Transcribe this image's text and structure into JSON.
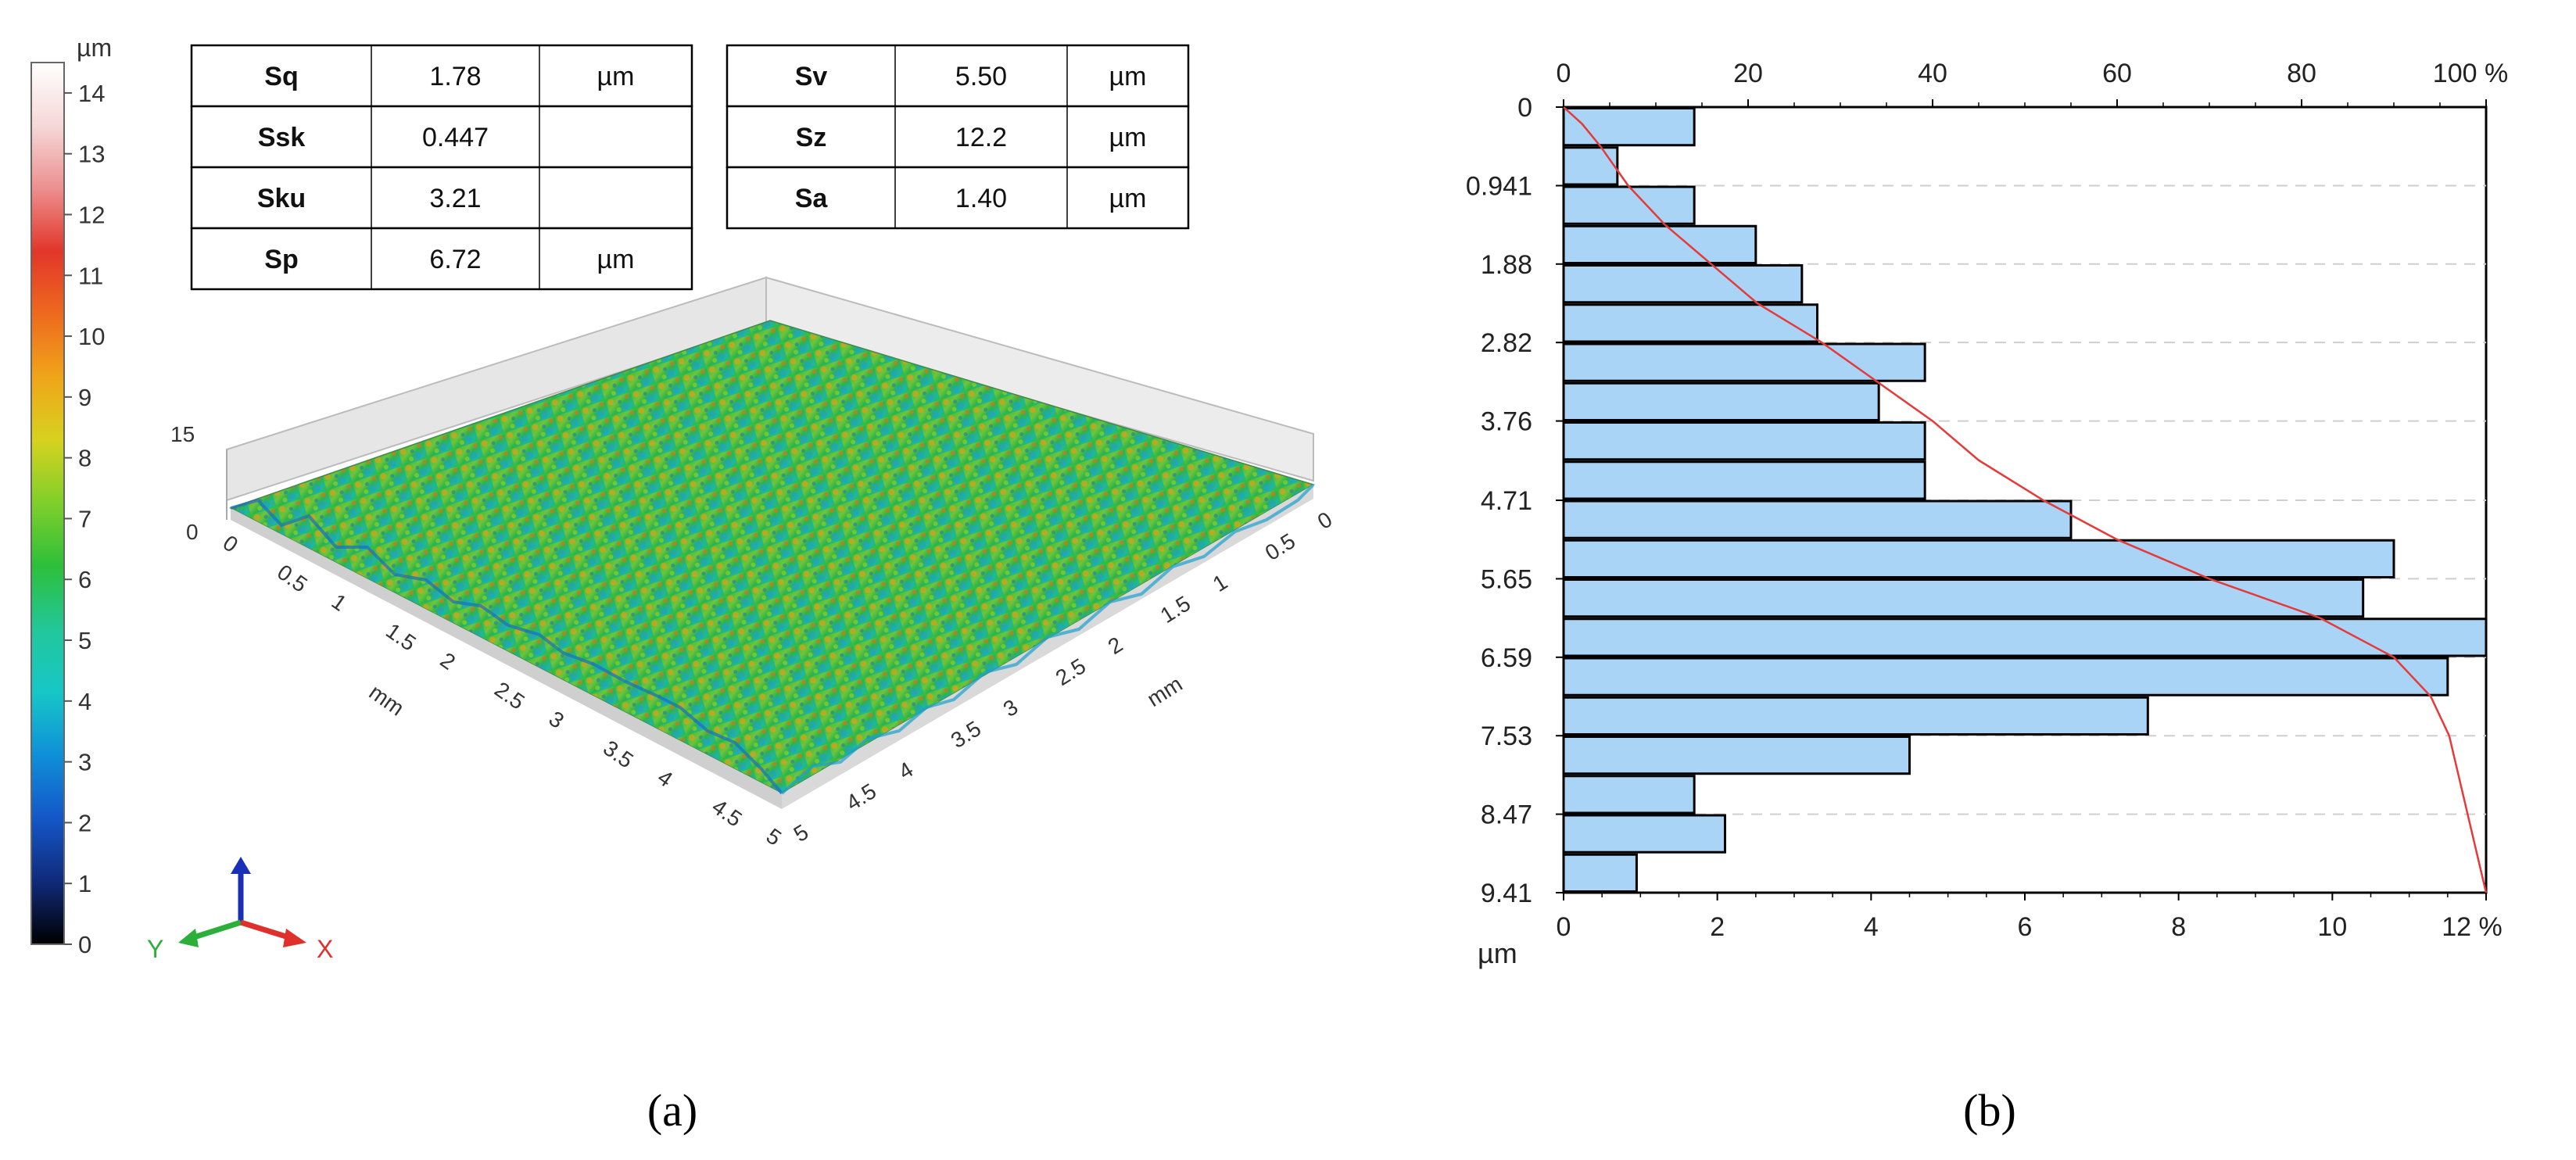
{
  "panel_a": {
    "caption": "(a)",
    "colorbar": {
      "unit": "µm",
      "min": 0,
      "max": 14.5,
      "tick_labels": [
        "0",
        "1",
        "2",
        "3",
        "4",
        "5",
        "6",
        "7",
        "8",
        "9",
        "10",
        "11",
        "12",
        "13",
        "14"
      ],
      "stops": [
        "#000000",
        "#102a7a",
        "#1457c8",
        "#0f8fd8",
        "#16c7c7",
        "#22c79a",
        "#2dbf3a",
        "#7fcf2a",
        "#d6d21e",
        "#f0a51a",
        "#ee6a1e",
        "#e2362a",
        "#ec8f8f",
        "#f6d8d8",
        "#ffffff"
      ]
    },
    "table_left": [
      {
        "name": "Sq",
        "value": "1.78",
        "unit": "µm"
      },
      {
        "name": "Ssk",
        "value": "0.447",
        "unit": ""
      },
      {
        "name": "Sku",
        "value": "3.21",
        "unit": ""
      },
      {
        "name": "Sp",
        "value": "6.72",
        "unit": "µm"
      }
    ],
    "table_right": [
      {
        "name": "Sv",
        "value": "5.50",
        "unit": "µm"
      },
      {
        "name": "Sz",
        "value": "12.2",
        "unit": "µm"
      },
      {
        "name": "Sa",
        "value": "1.40",
        "unit": "µm"
      }
    ],
    "surface": {
      "z_labels": [
        "15",
        "0"
      ],
      "x_ticks": [
        "0",
        "0.5",
        "1",
        "1.5",
        "2",
        "2.5",
        "3",
        "3.5",
        "4",
        "4.5",
        "5"
      ],
      "y_ticks": [
        "0",
        "0.5",
        "1",
        "1.5",
        "2",
        "2.5",
        "3",
        "3.5",
        "4",
        "4.5",
        "5"
      ],
      "x_unit": "mm",
      "y_unit": "mm"
    },
    "axes_gizmo": {
      "y": "Y",
      "x": "X"
    }
  },
  "panel_b": {
    "caption": "(b)",
    "chart_data": {
      "type": "bar",
      "orientation": "horizontal",
      "y_unit": "µm",
      "y_tick_labels": [
        "0",
        "0.941",
        "1.88",
        "2.82",
        "3.76",
        "4.71",
        "5.65",
        "6.59",
        "7.53",
        "8.47",
        "9.41"
      ],
      "ylim": [
        0,
        9.41
      ],
      "bin_width": 0.4705,
      "bins_start": [
        0.0,
        0.4705,
        0.941,
        1.4115,
        1.882,
        2.3525,
        2.823,
        3.2935,
        3.764,
        4.2345,
        4.705,
        5.1755,
        5.646,
        6.1165,
        6.587,
        7.0575,
        7.528,
        7.9985,
        8.469,
        8.9395
      ],
      "values": [
        1.7,
        0.7,
        1.7,
        2.5,
        3.1,
        3.3,
        4.7,
        4.1,
        4.7,
        4.7,
        6.6,
        10.8,
        10.4,
        12.0,
        11.5,
        7.6,
        4.5,
        1.7,
        2.1,
        0.95
      ],
      "bottom_axis": {
        "label": "%",
        "range": [
          0,
          12
        ],
        "tick_labels": [
          "0",
          "2",
          "4",
          "6",
          "8",
          "10",
          "12 %"
        ]
      },
      "top_axis": {
        "label": "%",
        "range": [
          0,
          100
        ],
        "tick_labels": [
          "0",
          "20",
          "40",
          "60",
          "80",
          "100 %"
        ]
      },
      "cumulative_curve": {
        "color": "#e63a3a",
        "depth": [
          0,
          0.2,
          0.47,
          0.94,
          1.41,
          1.88,
          2.35,
          2.82,
          3.29,
          3.76,
          4.23,
          4.71,
          5.18,
          5.65,
          6.12,
          6.59,
          7.06,
          7.53,
          8.0,
          8.47,
          8.94,
          9.41
        ],
        "cum_percent": [
          0,
          2,
          4,
          7,
          11,
          16,
          21,
          28,
          34,
          40,
          45,
          52,
          60,
          70,
          82,
          90,
          94,
          96,
          97,
          98,
          99,
          100
        ]
      },
      "bar_color": "#a9d4f5",
      "bar_edge_color": "#000000"
    }
  }
}
